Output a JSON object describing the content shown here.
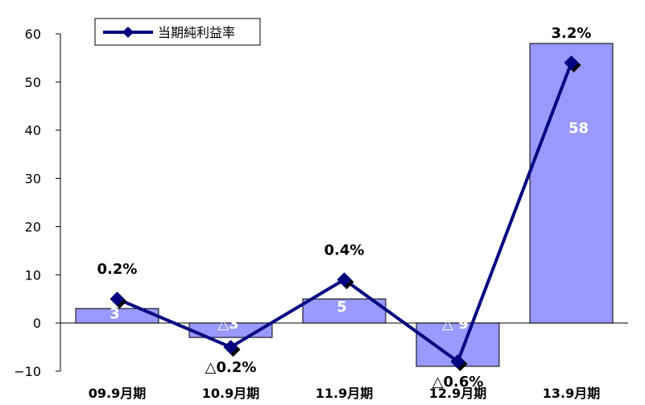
{
  "chart_data": {
    "type": "bar",
    "categories": [
      "09.9月期",
      "10.9月期",
      "11.9月期",
      "12.9月期",
      "13.9月期"
    ],
    "values": [
      3,
      -3,
      5,
      -9,
      58
    ],
    "value_labels": [
      "3",
      "△3",
      "5",
      "△ 9",
      "58"
    ],
    "series": [
      {
        "name": "当期純利益率",
        "type": "line",
        "values": [
          5,
          -5,
          9,
          -8,
          54
        ],
        "labels": [
          "0.2%",
          "△0.2%",
          "0.4%",
          "△0.6%",
          "3.2%"
        ]
      }
    ],
    "ylim": [
      -10,
      60
    ],
    "yticks": [
      -10,
      0,
      10,
      20,
      30,
      40,
      50,
      60
    ],
    "ytick_labels": [
      "−10",
      "0",
      "10",
      "20",
      "30",
      "40",
      "50",
      "60"
    ],
    "grid": false,
    "legend": "top-left",
    "colors": {
      "bar_fill": "#9999ff",
      "bar_stroke": "#000000",
      "line": "#000080",
      "marker": "#000080",
      "marker_shadow": "#000000"
    }
  }
}
